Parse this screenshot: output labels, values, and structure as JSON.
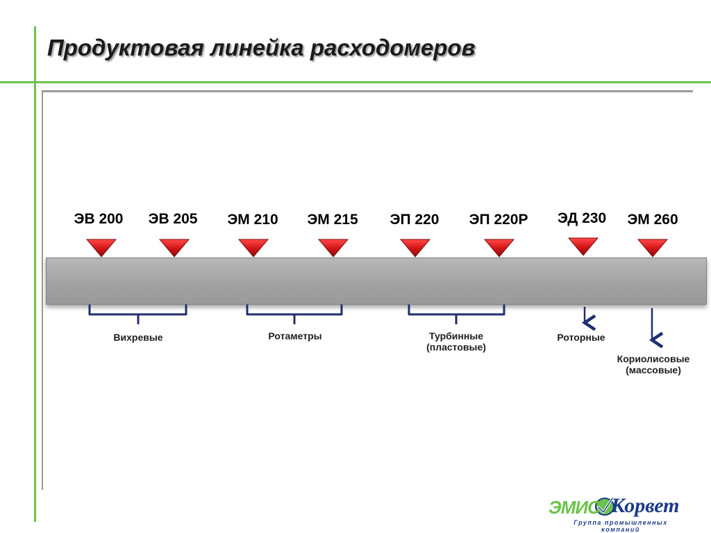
{
  "title": "Продуктовая линейка расходомеров",
  "colors": {
    "accent_green": "#6cc24a",
    "marker_red": "#cc1a1a",
    "bracket_blue": "#1f2e6e",
    "bar_gray": "#a8a8a8"
  },
  "models": [
    {
      "label": "ЭВ 200"
    },
    {
      "label": "ЭВ 205"
    },
    {
      "label": "ЭМ 210"
    },
    {
      "label": "ЭМ 215"
    },
    {
      "label": "ЭП 220"
    },
    {
      "label": "ЭП 220Р"
    },
    {
      "label": "ЭД 230"
    },
    {
      "label": "ЭМ 260"
    }
  ],
  "groups": [
    {
      "label": "Вихревые",
      "connector": "bracket"
    },
    {
      "label": "Ротаметры",
      "connector": "bracket"
    },
    {
      "label": "Турбинные\n(пластовые)",
      "connector": "bracket"
    },
    {
      "label": "Роторные",
      "connector": "arrow"
    },
    {
      "label": "Кориолисовые\n(массовые)",
      "connector": "arrow"
    }
  ],
  "logo": {
    "brand_left": "ЭМИС",
    "brand_right": "Корвет",
    "tagline": "Группа промышленных компаний"
  }
}
